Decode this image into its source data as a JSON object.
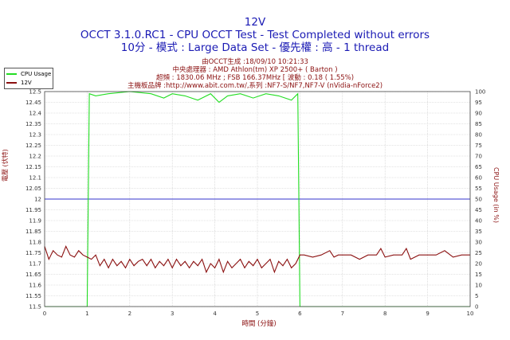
{
  "header": {
    "title": "12V",
    "subtitle1": "OCCT 3.1.0.RC1 - CPU OCCT Test - Test Completed without errors",
    "subtitle2": "10分 - 模式 : Large Data Set - 優先權 : 高 - 1 thread"
  },
  "info": {
    "line1": "由OCCT生成 :18/09/10 10:21:33",
    "line2": "中央處理器 : AMD Athlon(tm) XP 2500+ ( Barton )",
    "line3": "超頻 : 1830.06 MHz ; FSB 166.37MHz [ 波動 : 0.18 ( 1.55%)",
    "line4": "主機板品牌 :http://www.abit.com.tw/,系列 :NF7-S/NF7,NF7-V (nVidia-nForce2)"
  },
  "legend": {
    "cpu": "CPU Usage",
    "v12": "12V"
  },
  "colors": {
    "cpu": "#22dd22",
    "v12": "#8b1010",
    "ref": "#3333cc",
    "grid": "#c8c8c8",
    "text": "#8b1010",
    "title": "#1a1ab4"
  },
  "chart_data": {
    "type": "line",
    "xlabel": "時間 (分鐘)",
    "ylabel_left": "電壓 (伏特)",
    "ylabel_right": "CPU Usage (in %)",
    "xlim": [
      0,
      10
    ],
    "ylim_left": [
      11.5,
      12.5
    ],
    "ylim_right": [
      0,
      100
    ],
    "x_ticks": [
      0,
      1,
      2,
      3,
      4,
      5,
      6,
      7,
      8,
      9,
      10
    ],
    "y_ticks_left": [
      11.5,
      11.55,
      11.6,
      11.65,
      11.7,
      11.75,
      11.8,
      11.85,
      11.9,
      11.95,
      12,
      12.05,
      12.1,
      12.15,
      12.2,
      12.25,
      12.3,
      12.35,
      12.4,
      12.45,
      12.5
    ],
    "y_ticks_right": [
      0,
      5,
      10,
      15,
      20,
      25,
      30,
      35,
      40,
      45,
      50,
      55,
      60,
      65,
      70,
      75,
      80,
      85,
      90,
      95,
      100
    ],
    "grid": true,
    "reference_line": 12,
    "series": [
      {
        "name": "CPU Usage",
        "axis": "right",
        "x": [
          0,
          0.95,
          1.0,
          1.05,
          1.2,
          1.5,
          2.0,
          2.5,
          2.8,
          3.0,
          3.3,
          3.6,
          3.9,
          4.1,
          4.3,
          4.6,
          4.9,
          5.2,
          5.5,
          5.8,
          5.95,
          6.0,
          6.05,
          7,
          8,
          9,
          10
        ],
        "y": [
          0,
          0,
          0,
          99,
          98,
          99,
          100,
          99,
          97,
          99,
          98,
          96,
          99,
          95,
          98,
          99,
          97,
          99,
          98,
          96,
          99,
          0,
          0,
          0,
          0,
          0,
          0
        ]
      },
      {
        "name": "12V",
        "axis": "left",
        "x": [
          0,
          0.1,
          0.2,
          0.3,
          0.4,
          0.5,
          0.6,
          0.7,
          0.8,
          0.9,
          1.0,
          1.1,
          1.2,
          1.3,
          1.4,
          1.5,
          1.6,
          1.7,
          1.8,
          1.9,
          2.0,
          2.1,
          2.2,
          2.3,
          2.4,
          2.5,
          2.6,
          2.7,
          2.8,
          2.9,
          3.0,
          3.1,
          3.2,
          3.3,
          3.4,
          3.5,
          3.6,
          3.7,
          3.8,
          3.9,
          4.0,
          4.1,
          4.2,
          4.3,
          4.4,
          4.5,
          4.6,
          4.7,
          4.8,
          4.9,
          5.0,
          5.1,
          5.2,
          5.3,
          5.4,
          5.5,
          5.6,
          5.7,
          5.8,
          5.9,
          6.0,
          6.1,
          6.3,
          6.5,
          6.7,
          6.8,
          6.9,
          7.0,
          7.2,
          7.4,
          7.6,
          7.8,
          7.9,
          8.0,
          8.2,
          8.4,
          8.5,
          8.6,
          8.8,
          9.0,
          9.2,
          9.4,
          9.6,
          9.8,
          10.0
        ],
        "y": [
          11.78,
          11.72,
          11.76,
          11.74,
          11.73,
          11.78,
          11.74,
          11.73,
          11.76,
          11.74,
          11.73,
          11.72,
          11.74,
          11.69,
          11.72,
          11.68,
          11.72,
          11.69,
          11.71,
          11.68,
          11.72,
          11.69,
          11.71,
          11.72,
          11.69,
          11.72,
          11.68,
          11.71,
          11.69,
          11.72,
          11.68,
          11.72,
          11.69,
          11.71,
          11.68,
          11.71,
          11.69,
          11.72,
          11.66,
          11.7,
          11.68,
          11.72,
          11.66,
          11.71,
          11.68,
          11.7,
          11.72,
          11.68,
          11.71,
          11.69,
          11.72,
          11.68,
          11.7,
          11.72,
          11.66,
          11.71,
          11.69,
          11.72,
          11.68,
          11.7,
          11.74,
          11.74,
          11.73,
          11.74,
          11.76,
          11.73,
          11.74,
          11.74,
          11.74,
          11.72,
          11.74,
          11.74,
          11.77,
          11.73,
          11.74,
          11.74,
          11.77,
          11.72,
          11.74,
          11.74,
          11.74,
          11.76,
          11.73,
          11.74,
          11.74
        ]
      }
    ]
  }
}
